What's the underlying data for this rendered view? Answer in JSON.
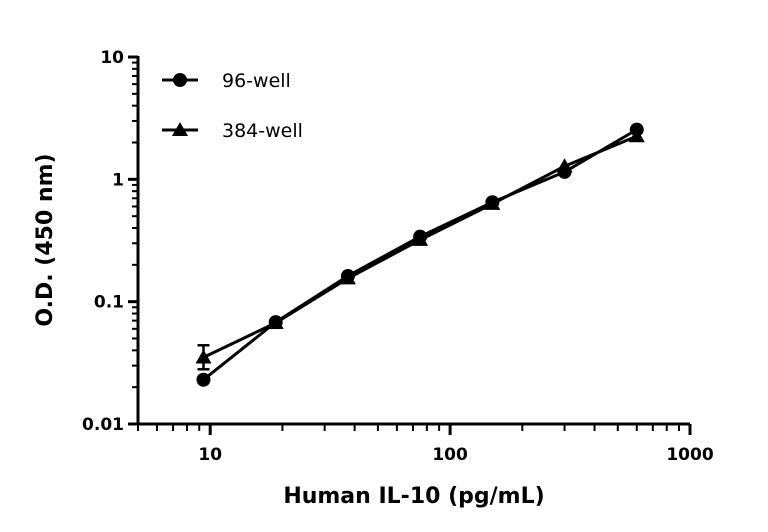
{
  "chart_data": {
    "type": "line",
    "title": "",
    "xlabel": "Human IL-10 (pg/mL)",
    "ylabel": "O.D. (450 nm)",
    "xscale": "log",
    "yscale": "log",
    "xlim": [
      5,
      1000
    ],
    "ylim": [
      0.01,
      10
    ],
    "xticks": [
      {
        "v": 10,
        "label": "10"
      },
      {
        "v": 100,
        "label": "100"
      },
      {
        "v": 1000,
        "label": "1000"
      }
    ],
    "yticks": [
      {
        "v": 0.01,
        "label": "0.01"
      },
      {
        "v": 0.1,
        "label": "0.1"
      },
      {
        "v": 1,
        "label": "1"
      },
      {
        "v": 10,
        "label": "10"
      }
    ],
    "grid": false,
    "legend_position": "top-left",
    "x": [
      9.375,
      18.75,
      37.5,
      75,
      150,
      300,
      600
    ],
    "series": [
      {
        "name": "96-well",
        "marker": "circle",
        "color": "#000000",
        "values": [
          0.023,
          0.068,
          0.162,
          0.34,
          0.65,
          1.15,
          2.55
        ]
      },
      {
        "name": "384-well",
        "marker": "triangle",
        "color": "#000000",
        "values": [
          0.035,
          0.067,
          0.155,
          0.32,
          0.63,
          1.28,
          2.25
        ],
        "error_bars": [
          {
            "x": 9.375,
            "low": 0.028,
            "high": 0.044
          }
        ]
      }
    ]
  }
}
